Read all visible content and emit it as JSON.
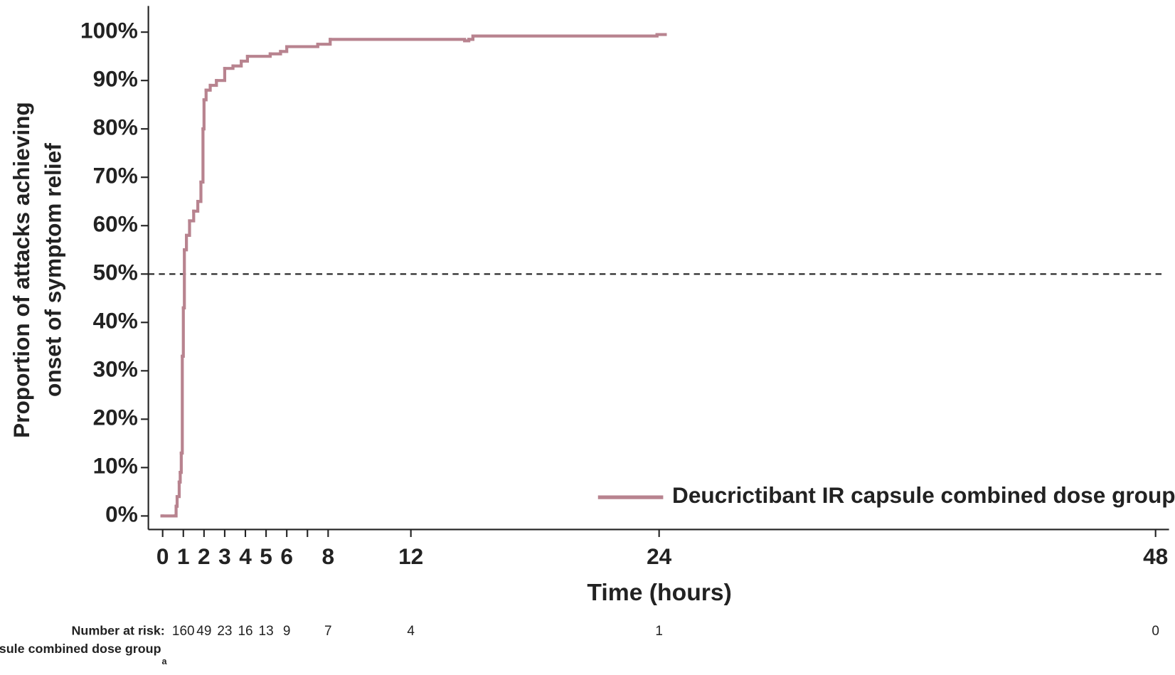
{
  "chart_data": {
    "type": "step",
    "y_label": [
      "Proportion of attacks achieving",
      "onset of symptom relief"
    ],
    "x_label": "Time (hours)",
    "xlim": [
      -0.69,
      48.65
    ],
    "ylim": [
      -2.8,
      105.4
    ],
    "xticks": [
      0,
      1,
      2,
      3,
      4,
      5,
      6,
      8,
      12,
      24,
      48
    ],
    "xminor_ticks": [
      7
    ],
    "yticks": [
      {
        "value": 0,
        "label": "0%"
      },
      {
        "value": 10,
        "label": "10%"
      },
      {
        "value": 20,
        "label": "20%"
      },
      {
        "value": 30,
        "label": "30%"
      },
      {
        "value": 40,
        "label": "40%"
      },
      {
        "value": 50,
        "label": "50%"
      },
      {
        "value": 60,
        "label": "60%"
      },
      {
        "value": 70,
        "label": "70%"
      },
      {
        "value": 80,
        "label": "80%"
      },
      {
        "value": 90,
        "label": "90%"
      },
      {
        "value": 100,
        "label": "100%"
      }
    ],
    "hline": 50,
    "legend": "lower right",
    "footnote_marker": "a",
    "series": [
      {
        "name": "Deucrictibant IR capsule combined dose group",
        "color": "#b8838f",
        "x": [
          0,
          0.6,
          0.65,
          0.7,
          0.8,
          0.85,
          0.9,
          0.95,
          1.0,
          1.05,
          1.15,
          1.3,
          1.5,
          1.7,
          1.85,
          1.95,
          2.0,
          2.1,
          2.3,
          2.6,
          3.0,
          3.4,
          3.8,
          4.1,
          5.2,
          5.7,
          6.0,
          7.5,
          8.1,
          14.6,
          14.8,
          15.0,
          23.9,
          24.3
        ],
        "values": [
          0,
          0,
          2,
          4,
          7,
          9,
          13,
          33,
          43,
          55,
          58,
          61,
          63,
          65,
          69,
          80,
          86,
          88,
          89,
          90,
          92.5,
          93,
          94,
          95,
          95.5,
          96,
          97,
          97.5,
          98.5,
          98.2,
          98.5,
          99.2,
          99.5,
          99.5
        ]
      }
    ],
    "risk_table": {
      "title": "Number at risk:",
      "group": "Deucrictibant IR capsule combined dose group",
      "x": [
        1,
        2,
        3,
        4,
        5,
        6,
        8,
        12,
        24,
        48
      ],
      "values": [
        160,
        49,
        23,
        16,
        13,
        9,
        7,
        4,
        1,
        0
      ]
    }
  }
}
